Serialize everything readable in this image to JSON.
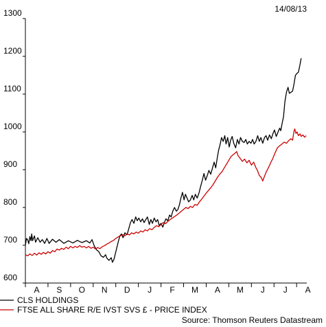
{
  "header": {
    "date": "14/08/13"
  },
  "footer": {
    "source": "Source: Thomson Reuters Datastream"
  },
  "chart_data": {
    "type": "line",
    "title": "",
    "xlabel": "",
    "ylabel": "",
    "ylim": [
      600,
      1300
    ],
    "yticks": [
      600,
      700,
      800,
      900,
      1000,
      1100,
      1200,
      1300
    ],
    "x_ticklabels": [
      "A",
      "S",
      "O",
      "N",
      "D",
      "J",
      "F",
      "M",
      "A",
      "M",
      "J",
      "J",
      "A"
    ],
    "x_range_months": [
      0,
      12.45
    ],
    "grid": false,
    "legend_position": "bottom-left",
    "series": [
      {
        "name": "CLS HOLDINGS",
        "color": "#000000",
        "points": [
          [
            0.0,
            700
          ],
          [
            0.05,
            718
          ],
          [
            0.1,
            715
          ],
          [
            0.15,
            704
          ],
          [
            0.2,
            723
          ],
          [
            0.25,
            712
          ],
          [
            0.28,
            730
          ],
          [
            0.32,
            712
          ],
          [
            0.4,
            725
          ],
          [
            0.45,
            708
          ],
          [
            0.55,
            720
          ],
          [
            0.65,
            708
          ],
          [
            0.75,
            715
          ],
          [
            0.85,
            705
          ],
          [
            0.95,
            718
          ],
          [
            1.05,
            705
          ],
          [
            1.2,
            716
          ],
          [
            1.35,
            708
          ],
          [
            1.5,
            715
          ],
          [
            1.7,
            705
          ],
          [
            1.9,
            712
          ],
          [
            2.1,
            706
          ],
          [
            2.3,
            713
          ],
          [
            2.5,
            707
          ],
          [
            2.7,
            712
          ],
          [
            2.85,
            706
          ],
          [
            2.95,
            715
          ],
          [
            3.0,
            706
          ],
          [
            3.05,
            698
          ],
          [
            3.15,
            688
          ],
          [
            3.25,
            683
          ],
          [
            3.35,
            672
          ],
          [
            3.45,
            668
          ],
          [
            3.55,
            675
          ],
          [
            3.6,
            666
          ],
          [
            3.7,
            660
          ],
          [
            3.8,
            667
          ],
          [
            3.85,
            655
          ],
          [
            3.92,
            663
          ],
          [
            3.98,
            678
          ],
          [
            4.05,
            695
          ],
          [
            4.12,
            712
          ],
          [
            4.18,
            725
          ],
          [
            4.25,
            730
          ],
          [
            4.32,
            720
          ],
          [
            4.4,
            733
          ],
          [
            4.5,
            728
          ],
          [
            4.58,
            745
          ],
          [
            4.65,
            760
          ],
          [
            4.72,
            768
          ],
          [
            4.8,
            758
          ],
          [
            4.88,
            775
          ],
          [
            4.95,
            765
          ],
          [
            5.02,
            772
          ],
          [
            5.1,
            762
          ],
          [
            5.18,
            770
          ],
          [
            5.25,
            760
          ],
          [
            5.33,
            768
          ],
          [
            5.4,
            775
          ],
          [
            5.48,
            755
          ],
          [
            5.55,
            768
          ],
          [
            5.62,
            758
          ],
          [
            5.7,
            772
          ],
          [
            5.78,
            762
          ],
          [
            5.85,
            768
          ],
          [
            5.92,
            752
          ],
          [
            6.0,
            758
          ],
          [
            6.08,
            748
          ],
          [
            6.15,
            760
          ],
          [
            6.22,
            770
          ],
          [
            6.3,
            765
          ],
          [
            6.38,
            780
          ],
          [
            6.45,
            775
          ],
          [
            6.52,
            790
          ],
          [
            6.6,
            800
          ],
          [
            6.68,
            790
          ],
          [
            6.75,
            795
          ],
          [
            6.82,
            808
          ],
          [
            6.88,
            825
          ],
          [
            6.95,
            840
          ],
          [
            7.02,
            820
          ],
          [
            7.08,
            835
          ],
          [
            7.15,
            825
          ],
          [
            7.22,
            815
          ],
          [
            7.3,
            820
          ],
          [
            7.38,
            832
          ],
          [
            7.45,
            820
          ],
          [
            7.52,
            835
          ],
          [
            7.6,
            825
          ],
          [
            7.68,
            838
          ],
          [
            7.75,
            855
          ],
          [
            7.82,
            870
          ],
          [
            7.9,
            890
          ],
          [
            7.97,
            872
          ],
          [
            8.05,
            885
          ],
          [
            8.12,
            898
          ],
          [
            8.2,
            888
          ],
          [
            8.28,
            905
          ],
          [
            8.35,
            920
          ],
          [
            8.42,
            905
          ],
          [
            8.5,
            935
          ],
          [
            8.55,
            952
          ],
          [
            8.62,
            968
          ],
          [
            8.68,
            985
          ],
          [
            8.75,
            975
          ],
          [
            8.82,
            990
          ],
          [
            8.88,
            968
          ],
          [
            8.95,
            985
          ],
          [
            9.02,
            960
          ],
          [
            9.08,
            978
          ],
          [
            9.15,
            988
          ],
          [
            9.22,
            970
          ],
          [
            9.3,
            958
          ],
          [
            9.38,
            980
          ],
          [
            9.45,
            968
          ],
          [
            9.52,
            985
          ],
          [
            9.6,
            975
          ],
          [
            9.68,
            972
          ],
          [
            9.75,
            980
          ],
          [
            9.82,
            968
          ],
          [
            9.9,
            975
          ],
          [
            9.98,
            970
          ],
          [
            10.05,
            980
          ],
          [
            10.12,
            968
          ],
          [
            10.2,
            975
          ],
          [
            10.28,
            990
          ],
          [
            10.35,
            975
          ],
          [
            10.42,
            985
          ],
          [
            10.5,
            970
          ],
          [
            10.58,
            985
          ],
          [
            10.65,
            990
          ],
          [
            10.72,
            978
          ],
          [
            10.8,
            992
          ],
          [
            10.88,
            982
          ],
          [
            10.95,
            995
          ],
          [
            11.02,
            1005
          ],
          [
            11.1,
            988
          ],
          [
            11.18,
            1000
          ],
          [
            11.25,
            1010
          ],
          [
            11.3,
            1003
          ],
          [
            11.35,
            1020
          ],
          [
            11.42,
            1040
          ],
          [
            11.48,
            1080
          ],
          [
            11.55,
            1105
          ],
          [
            11.62,
            1118
          ],
          [
            11.68,
            1102
          ],
          [
            11.75,
            1105
          ],
          [
            11.82,
            1108
          ],
          [
            11.88,
            1125
          ],
          [
            11.95,
            1150
          ],
          [
            12.02,
            1155
          ],
          [
            12.08,
            1158
          ],
          [
            12.15,
            1178
          ],
          [
            12.2,
            1195
          ]
        ]
      },
      {
        "name": "FTSE ALL SHARE R/E IVST SVS £ - PRICE INDEX",
        "color": "#cc0000",
        "points": [
          [
            0.0,
            675
          ],
          [
            0.1,
            672
          ],
          [
            0.2,
            677
          ],
          [
            0.3,
            673
          ],
          [
            0.4,
            679
          ],
          [
            0.5,
            674
          ],
          [
            0.6,
            680
          ],
          [
            0.7,
            676
          ],
          [
            0.8,
            681
          ],
          [
            0.9,
            677
          ],
          [
            1.0,
            683
          ],
          [
            1.1,
            679
          ],
          [
            1.2,
            686
          ],
          [
            1.3,
            683
          ],
          [
            1.4,
            690
          ],
          [
            1.5,
            687
          ],
          [
            1.6,
            692
          ],
          [
            1.7,
            689
          ],
          [
            1.8,
            695
          ],
          [
            1.9,
            691
          ],
          [
            2.0,
            697
          ],
          [
            2.1,
            693
          ],
          [
            2.2,
            697
          ],
          [
            2.3,
            694
          ],
          [
            2.4,
            699
          ],
          [
            2.5,
            695
          ],
          [
            2.6,
            697
          ],
          [
            2.7,
            693
          ],
          [
            2.8,
            697
          ],
          [
            2.9,
            692
          ],
          [
            3.0,
            695
          ],
          [
            3.1,
            690
          ],
          [
            3.2,
            694
          ],
          [
            3.3,
            691
          ],
          [
            3.4,
            696
          ],
          [
            3.5,
            699
          ],
          [
            3.6,
            703
          ],
          [
            3.7,
            706
          ],
          [
            3.8,
            710
          ],
          [
            3.9,
            713
          ],
          [
            4.0,
            718
          ],
          [
            4.1,
            722
          ],
          [
            4.2,
            725
          ],
          [
            4.3,
            728
          ],
          [
            4.4,
            725
          ],
          [
            4.5,
            730
          ],
          [
            4.6,
            727
          ],
          [
            4.7,
            733
          ],
          [
            4.8,
            730
          ],
          [
            4.9,
            735
          ],
          [
            5.0,
            732
          ],
          [
            5.1,
            738
          ],
          [
            5.2,
            735
          ],
          [
            5.3,
            741
          ],
          [
            5.4,
            738
          ],
          [
            5.5,
            744
          ],
          [
            5.6,
            741
          ],
          [
            5.7,
            747
          ],
          [
            5.8,
            752
          ],
          [
            5.9,
            749
          ],
          [
            6.0,
            755
          ],
          [
            6.1,
            760
          ],
          [
            6.2,
            757
          ],
          [
            6.3,
            763
          ],
          [
            6.4,
            768
          ],
          [
            6.5,
            772
          ],
          [
            6.6,
            776
          ],
          [
            6.7,
            780
          ],
          [
            6.8,
            785
          ],
          [
            6.9,
            790
          ],
          [
            7.0,
            795
          ],
          [
            7.1,
            800
          ],
          [
            7.2,
            797
          ],
          [
            7.3,
            803
          ],
          [
            7.4,
            800
          ],
          [
            7.5,
            808
          ],
          [
            7.6,
            806
          ],
          [
            7.7,
            815
          ],
          [
            7.8,
            822
          ],
          [
            7.9,
            830
          ],
          [
            8.0,
            838
          ],
          [
            8.1,
            845
          ],
          [
            8.2,
            852
          ],
          [
            8.3,
            860
          ],
          [
            8.4,
            870
          ],
          [
            8.5,
            880
          ],
          [
            8.6,
            888
          ],
          [
            8.7,
            895
          ],
          [
            8.8,
            905
          ],
          [
            8.9,
            915
          ],
          [
            9.0,
            925
          ],
          [
            9.1,
            935
          ],
          [
            9.2,
            940
          ],
          [
            9.3,
            945
          ],
          [
            9.35,
            948
          ],
          [
            9.4,
            938
          ],
          [
            9.5,
            930
          ],
          [
            9.6,
            922
          ],
          [
            9.7,
            928
          ],
          [
            9.8,
            918
          ],
          [
            9.9,
            925
          ],
          [
            10.0,
            912
          ],
          [
            10.1,
            920
          ],
          [
            10.2,
            905
          ],
          [
            10.25,
            900
          ],
          [
            10.35,
            885
          ],
          [
            10.45,
            878
          ],
          [
            10.5,
            870
          ],
          [
            10.55,
            878
          ],
          [
            10.65,
            893
          ],
          [
            10.75,
            905
          ],
          [
            10.85,
            918
          ],
          [
            10.95,
            930
          ],
          [
            11.05,
            945
          ],
          [
            11.15,
            958
          ],
          [
            11.25,
            963
          ],
          [
            11.35,
            968
          ],
          [
            11.45,
            973
          ],
          [
            11.55,
            970
          ],
          [
            11.65,
            977
          ],
          [
            11.75,
            982
          ],
          [
            11.82,
            978
          ],
          [
            11.88,
            1000
          ],
          [
            11.92,
            1008
          ],
          [
            11.97,
            996
          ],
          [
            12.02,
            1000
          ],
          [
            12.08,
            990
          ],
          [
            12.15,
            995
          ],
          [
            12.2,
            988
          ],
          [
            12.28,
            992
          ],
          [
            12.35,
            986
          ],
          [
            12.42,
            990
          ]
        ]
      }
    ]
  }
}
